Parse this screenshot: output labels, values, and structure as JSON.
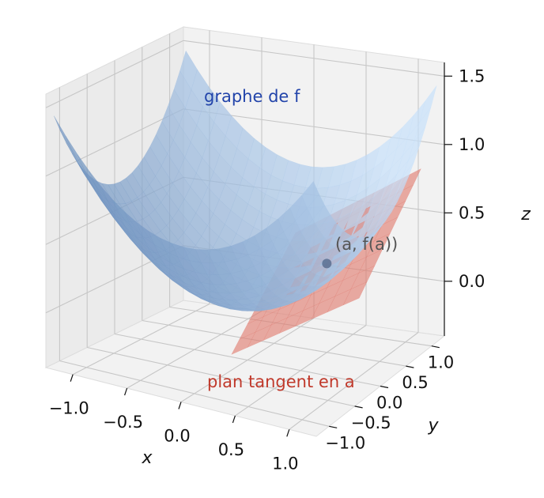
{
  "chart_data": {
    "type": "surface3d",
    "title": "",
    "xlabel": "x",
    "ylabel": "y",
    "zlabel": "z",
    "xlim": [
      -1.25,
      1.25
    ],
    "ylim": [
      -1.25,
      1.25
    ],
    "zlim": [
      -0.4,
      1.6
    ],
    "xticks": [
      -1.0,
      -0.5,
      0.0,
      0.5,
      1.0
    ],
    "xtick_labels": [
      "−1.0",
      "−0.5",
      "0.0",
      "0.5",
      "1.0"
    ],
    "yticks": [
      -1.0,
      -0.5,
      0.0,
      0.5,
      1.0
    ],
    "ytick_labels": [
      "−1.0",
      "−0.5",
      "0.0",
      "0.5",
      "1.0"
    ],
    "zticks": [
      0.0,
      0.5,
      1.0,
      1.5
    ],
    "ztick_labels": [
      "0.0",
      "0.5",
      "1.0",
      "1.5"
    ],
    "grid": true,
    "surface": {
      "label": "graphe de f",
      "label_color": "#2244aa",
      "color": "#8fb4df",
      "function": "f(x,y) = (x^2 + y^2) / 2",
      "x_range": [
        -1.2,
        1.2
      ],
      "y_range": [
        -1.2,
        1.2
      ]
    },
    "tangent_plane": {
      "label": "plan tangent en a",
      "label_color": "#c0392b",
      "color": "#e07a6e",
      "point_a": [
        0.5,
        0.5
      ],
      "f_a": 0.25,
      "equation": "z = 0.5 x + 0.5 y - 0.25",
      "x_range": [
        -0.1,
        1.1
      ],
      "y_range": [
        -0.1,
        1.1
      ]
    },
    "point": {
      "label": "(a, f(a))",
      "x": 0.5,
      "y": 0.5,
      "z": 0.25,
      "color": "#5b6e90"
    }
  }
}
